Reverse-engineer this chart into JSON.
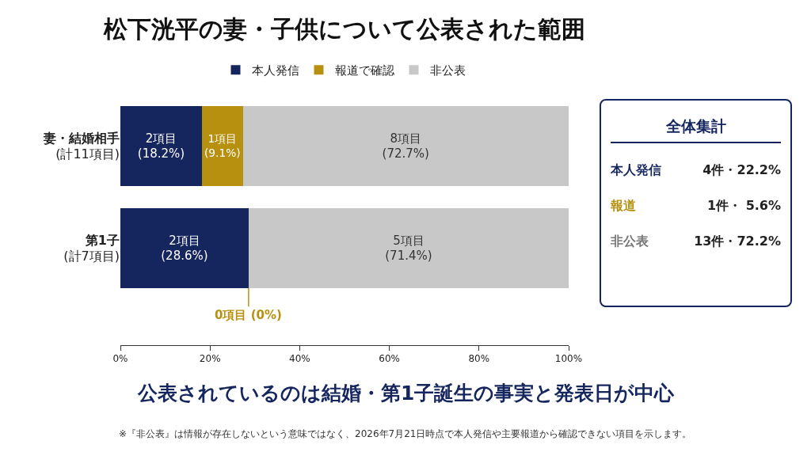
{
  "chart_data": [
    {
      "type": "bar",
      "orientation": "horizontal",
      "stacked": true,
      "title": "松下洸平の妻・子供について公表された範囲",
      "categories": [
        "妻・結婚相手\n(計11項目)",
        "第1子\n(計7項目)"
      ],
      "series": [
        {
          "name": "本人発信",
          "color": "#15265e",
          "values": [
            18.2,
            28.6
          ],
          "value_labels": [
            "2項目\n(18.2%)",
            "2項目\n(28.6%)"
          ]
        },
        {
          "name": "報道で確認",
          "color": "#b8900f",
          "values": [
            9.1,
            0
          ],
          "value_labels": [
            "1項目\n(9.1%)",
            null
          ]
        },
        {
          "name": "非公表",
          "color": "#c8c8c8",
          "values": [
            72.7,
            71.4
          ],
          "value_labels": [
            "8項目\n(72.7%)",
            "5項目\n(71.4%)"
          ]
        }
      ],
      "xlim": [
        0,
        100
      ],
      "xticks": [
        {
          "value": 0,
          "label": "0%"
        },
        {
          "value": 20,
          "label": "20%"
        },
        {
          "value": 40,
          "label": "40%"
        },
        {
          "value": 60,
          "label": "60%"
        },
        {
          "value": 80,
          "label": "80%"
        },
        {
          "value": 100,
          "label": "100%"
        }
      ],
      "legend": "top",
      "grid": false,
      "annotations": [
        {
          "text": "0項目 (0%)",
          "x": 28.6,
          "y": "第1子\n(計7項目)"
        },
        "公表されているのは結婚・第1子誕生の事実と発表日が中心",
        "※『非公表』は情報が存在しないという意味ではなく、2026年7月21日時点で本人発信や主要報道から確認できない項目を示します。"
      ]
    },
    {
      "type": "other",
      "title": "全体集計",
      "annotations": [
        "本人発信",
        "4件・22.2%",
        "報道",
        "1件・ 5.6%",
        "非公表",
        "13件・72.2%"
      ]
    }
  ]
}
